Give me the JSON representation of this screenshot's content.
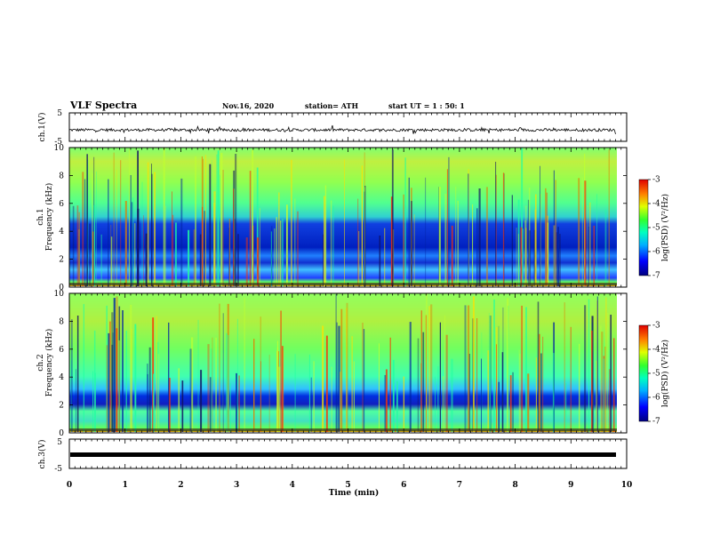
{
  "header": {
    "title": "VLF Spectra",
    "date": "Nov.16, 2020",
    "station": "station= ATH",
    "start": "start  UT =   1 : 50: 1"
  },
  "chart_data": [
    {
      "type": "line",
      "panel": "waveform-ch1",
      "ylabel": "ch.1(V)",
      "ylim": [
        -5,
        5
      ],
      "yticks": [
        "5",
        "-5"
      ],
      "xlim": [
        0,
        10
      ],
      "baseline": -1,
      "description_values": {
        "typical_range": [
          -2,
          0
        ]
      }
    },
    {
      "type": "heatmap",
      "panel": "spectrogram-ch1",
      "ylabel": "Frequency (kHz)",
      "ylabel2": "ch.1",
      "ylim": [
        0,
        10
      ],
      "yticks": [
        "0",
        "2",
        "4",
        "6",
        "8",
        "10"
      ],
      "xlim": [
        0,
        10
      ],
      "colorbar": {
        "label": "log(PSD) (V²/Hz)",
        "range": [
          -7,
          -3
        ],
        "ticks": [
          "-3",
          "-4",
          "-5",
          "-6",
          "-7"
        ]
      }
    },
    {
      "type": "heatmap",
      "panel": "spectrogram-ch2",
      "ylabel": "Frequency (kHz)",
      "ylabel2": "ch.2",
      "ylim": [
        0,
        10
      ],
      "yticks": [
        "0",
        "2",
        "4",
        "6",
        "8",
        "10"
      ],
      "xlim": [
        0,
        10
      ],
      "colorbar": {
        "label": "log(PSD) (V²/Hz)",
        "range": [
          -7,
          -3
        ],
        "ticks": [
          "-3",
          "-4",
          "-5",
          "-6",
          "-7"
        ]
      }
    },
    {
      "type": "line",
      "panel": "waveform-ch3",
      "ylabel": "ch.3(V)",
      "ylim": [
        -5,
        5
      ],
      "yticks": [
        "5",
        "-5"
      ],
      "xlim": [
        0,
        10
      ],
      "baseline": -1
    }
  ],
  "xaxis": {
    "label": "Time  (min)",
    "ticks": [
      "0",
      "1",
      "2",
      "3",
      "4",
      "5",
      "6",
      "7",
      "8",
      "9",
      "10"
    ]
  }
}
